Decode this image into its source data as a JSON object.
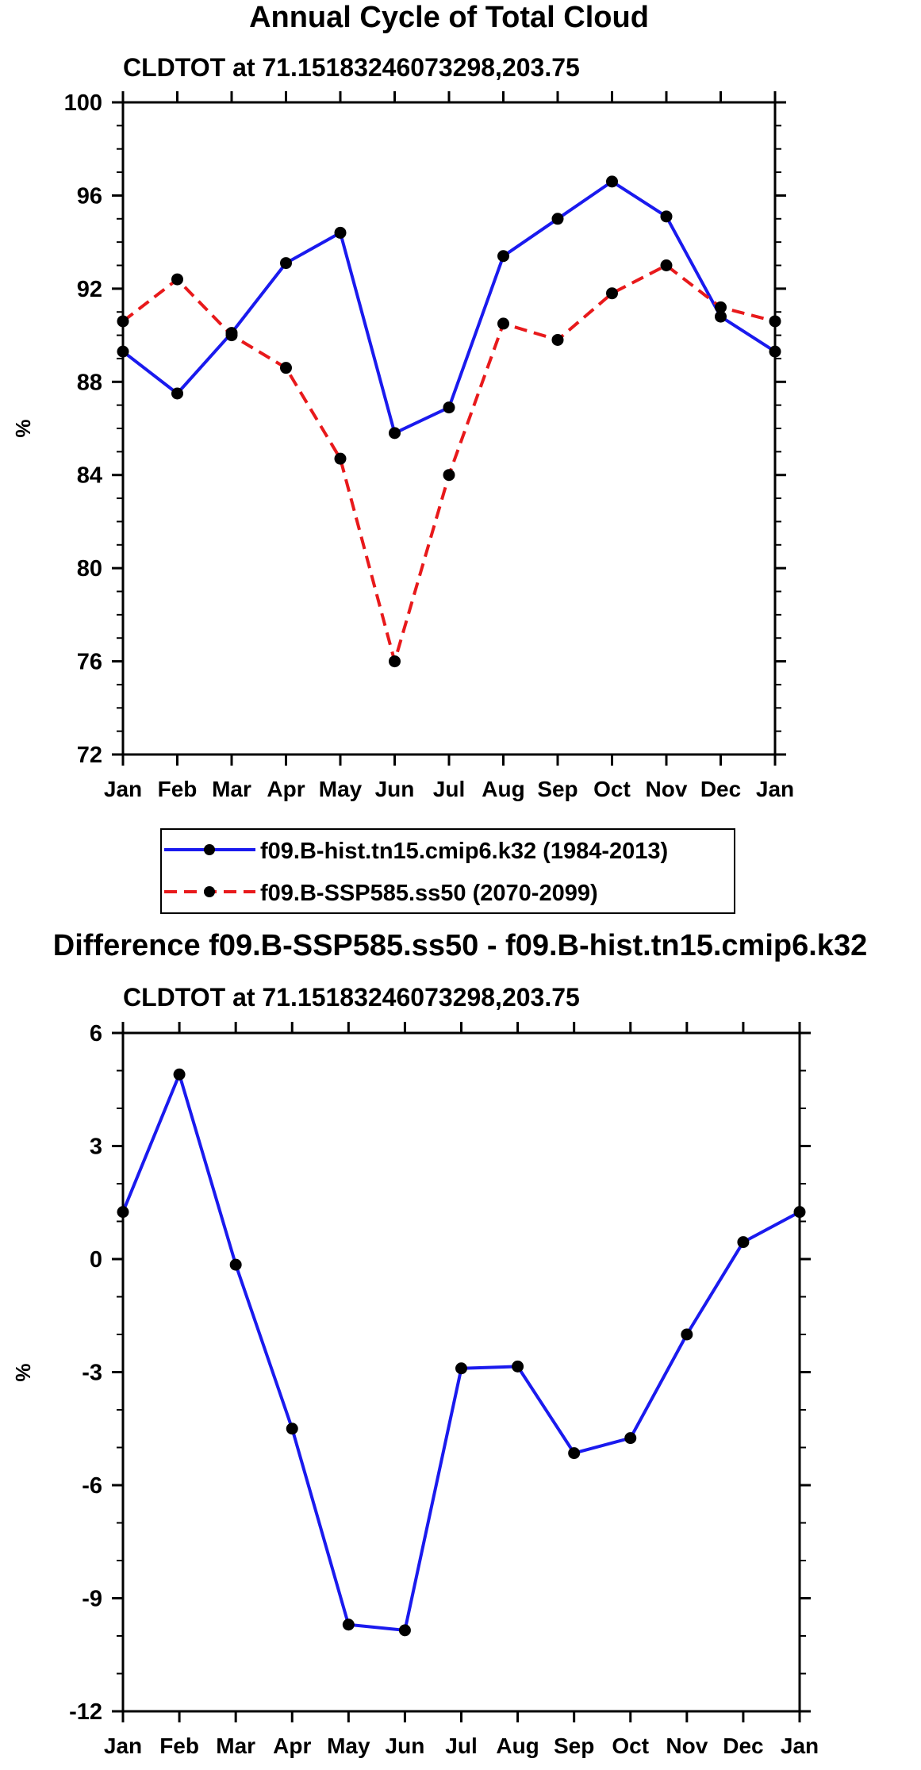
{
  "chart_data": [
    {
      "type": "line",
      "title": "Annual Cycle of Total Cloud",
      "subtitle": "CLDTOT at 71.15183246073298,203.75",
      "xlabel": "",
      "ylabel": "%",
      "categories": [
        "Jan",
        "Feb",
        "Mar",
        "Apr",
        "May",
        "Jun",
        "Jul",
        "Aug",
        "Sep",
        "Oct",
        "Nov",
        "Dec",
        "Jan"
      ],
      "ylim": [
        72,
        100
      ],
      "yticks": [
        72,
        76,
        80,
        84,
        88,
        92,
        96,
        100
      ],
      "ytick_labels": [
        "72",
        "76",
        "80",
        "84",
        "88",
        "92",
        "96",
        "100"
      ],
      "series": [
        {
          "name": "f09.B-hist.tn15.cmip6.k32 (1984-2013)",
          "color": "#1a1aee",
          "style": "solid",
          "values": [
            89.3,
            87.5,
            90.1,
            93.1,
            94.4,
            85.8,
            86.9,
            93.4,
            95.0,
            96.6,
            95.1,
            90.8,
            89.3
          ]
        },
        {
          "name": "f09.B-SSP585.ss50 (2070-2099)",
          "color": "#e8191b",
          "style": "dashed",
          "values": [
            90.6,
            92.4,
            90.0,
            88.6,
            84.7,
            76.0,
            84.0,
            90.5,
            89.8,
            91.8,
            93.0,
            91.2,
            90.6
          ]
        }
      ],
      "legend": "below"
    },
    {
      "type": "line",
      "title": "Difference f09.B-SSP585.ss50 - f09.B-hist.tn15.cmip6.k32",
      "subtitle": "CLDTOT at 71.15183246073298,203.75",
      "xlabel": "",
      "ylabel": "%",
      "categories": [
        "Jan",
        "Feb",
        "Mar",
        "Apr",
        "May",
        "Jun",
        "Jul",
        "Aug",
        "Sep",
        "Oct",
        "Nov",
        "Dec",
        "Jan"
      ],
      "ylim": [
        -12,
        6
      ],
      "yticks": [
        -12,
        -9,
        -6,
        -3,
        0,
        3,
        6
      ],
      "ytick_labels": [
        "-12",
        "-9",
        "-6",
        "-3",
        "0",
        "3",
        "6"
      ],
      "series": [
        {
          "name": "Difference",
          "color": "#1a1aee",
          "style": "solid",
          "values": [
            1.25,
            4.9,
            -0.15,
            -4.5,
            -9.7,
            -9.85,
            -2.9,
            -2.85,
            -5.15,
            -4.75,
            -2.0,
            0.45,
            1.25
          ]
        }
      ]
    }
  ]
}
